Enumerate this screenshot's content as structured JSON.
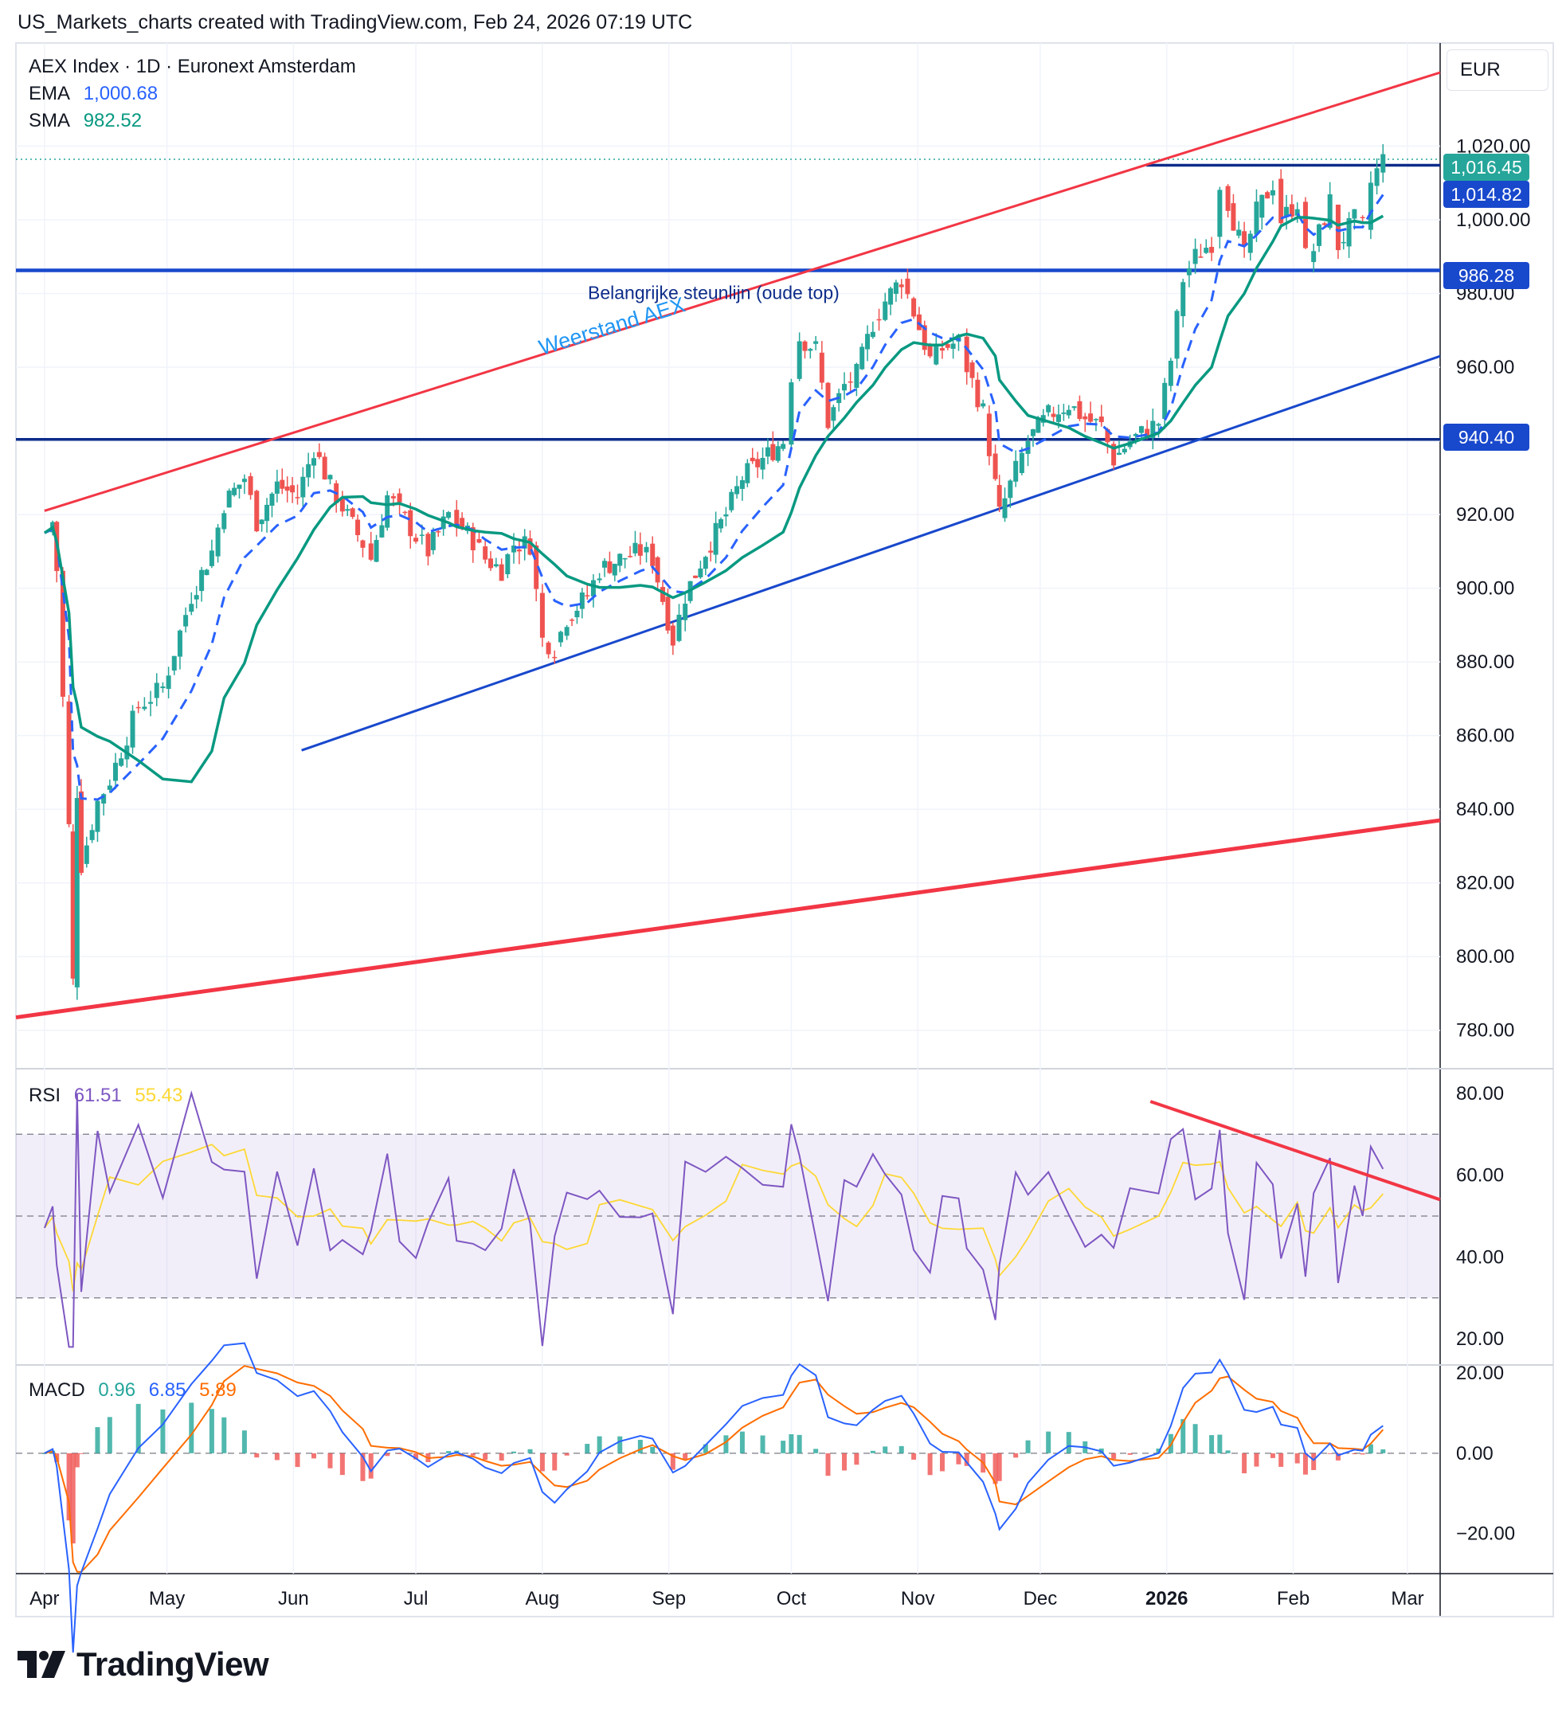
{
  "header": {
    "text": "US_Markets_charts created with TradingView.com, Feb 24, 2026 07:19 UTC"
  },
  "legend": {
    "symbol": "AEX Index · 1D · Euronext Amsterdam",
    "ema_label": "EMA",
    "ema_value": "1,000.68",
    "sma_label": "SMA",
    "sma_value": "982.52",
    "rsi_label": "RSI",
    "rsi_value": "61.51",
    "rsi_ma_value": "55.43",
    "macd_label": "MACD",
    "macd_hist": "0.96",
    "macd_value": "6.85",
    "macd_signal": "5.89"
  },
  "currency": "EUR",
  "price_tags": [
    {
      "value": "1,016.45",
      "color": "#26a69a"
    },
    {
      "value": "1,014.82",
      "color": "#1848cc"
    },
    {
      "value": "986.28",
      "color": "#1848cc"
    },
    {
      "value": "940.40",
      "color": "#1848cc"
    }
  ],
  "annotations": {
    "support_text": "Belangrijke steunlijn (oude top)",
    "resistance_text": "Weerstand AEX"
  },
  "logo": {
    "text": "TradingView"
  },
  "colors": {
    "up": "#26a69a",
    "down": "#ef5350",
    "ema": "#2962ff",
    "sma": "#089981",
    "channel_red": "#f23645",
    "channel_blue": "#1848cc",
    "rsi": "#7e57c2",
    "rsi_ma": "#fdd835",
    "macd_line": "#2962ff",
    "macd_signal": "#ff6d00"
  },
  "chart_data": {
    "type": "candlestick",
    "x_ticks": [
      "Apr",
      "May",
      "Jun",
      "Jul",
      "Aug",
      "Sep",
      "Oct",
      "Nov",
      "Dec",
      "2026",
      "Feb",
      "Mar"
    ],
    "price_axis": {
      "ticks": [
        "780.00",
        "800.00",
        "820.00",
        "840.00",
        "860.00",
        "880.00",
        "900.00",
        "920.00",
        "940.00",
        "960.00",
        "980.00",
        "1,000.00",
        "1,020.00"
      ],
      "range": [
        770,
        1048
      ]
    },
    "price_close_trace": [
      [
        "2025-04-01",
        915
      ],
      [
        "2025-04-03",
        918
      ],
      [
        "2025-04-04",
        905
      ],
      [
        "2025-04-07",
        835
      ],
      [
        "2025-04-08",
        793
      ],
      [
        "2025-04-09",
        845
      ],
      [
        "2025-04-10",
        825
      ],
      [
        "2025-04-14",
        842
      ],
      [
        "2025-04-17",
        848
      ],
      [
        "2025-04-24",
        868
      ],
      [
        "2025-04-30",
        873
      ],
      [
        "2025-05-07",
        898
      ],
      [
        "2025-05-12",
        910
      ],
      [
        "2025-05-15",
        923
      ],
      [
        "2025-05-20",
        930
      ],
      [
        "2025-05-23",
        918
      ],
      [
        "2025-05-28",
        928
      ],
      [
        "2025-06-02",
        925
      ],
      [
        "2025-06-06",
        938
      ],
      [
        "2025-06-10",
        928
      ],
      [
        "2025-06-13",
        922
      ],
      [
        "2025-06-18",
        912
      ],
      [
        "2025-06-20",
        908
      ],
      [
        "2025-06-24",
        925
      ],
      [
        "2025-06-27",
        921
      ],
      [
        "2025-07-01",
        914
      ],
      [
        "2025-07-04",
        910
      ],
      [
        "2025-07-09",
        920
      ],
      [
        "2025-07-11",
        918
      ],
      [
        "2025-07-15",
        913
      ],
      [
        "2025-07-18",
        908
      ],
      [
        "2025-07-22",
        905
      ],
      [
        "2025-07-25",
        912
      ],
      [
        "2025-07-29",
        912
      ],
      [
        "2025-08-01",
        886
      ],
      [
        "2025-08-04",
        884
      ],
      [
        "2025-08-07",
        892
      ],
      [
        "2025-08-12",
        898
      ],
      [
        "2025-08-15",
        905
      ],
      [
        "2025-08-20",
        908
      ],
      [
        "2025-08-25",
        910
      ],
      [
        "2025-08-28",
        908
      ],
      [
        "2025-09-02",
        886
      ],
      [
        "2025-09-05",
        898
      ],
      [
        "2025-09-10",
        910
      ],
      [
        "2025-09-15",
        920
      ],
      [
        "2025-09-19",
        930
      ],
      [
        "2025-09-24",
        935
      ],
      [
        "2025-09-29",
        940
      ],
      [
        "2025-10-01",
        958
      ],
      [
        "2025-10-03",
        968
      ],
      [
        "2025-10-07",
        965
      ],
      [
        "2025-10-10",
        945
      ],
      [
        "2025-10-14",
        955
      ],
      [
        "2025-10-17",
        958
      ],
      [
        "2025-10-21",
        972
      ],
      [
        "2025-10-24",
        978
      ],
      [
        "2025-10-28",
        984
      ],
      [
        "2025-10-31",
        975
      ],
      [
        "2025-11-04",
        962
      ],
      [
        "2025-11-07",
        965
      ],
      [
        "2025-11-11",
        967
      ],
      [
        "2025-11-13",
        960
      ],
      [
        "2025-11-17",
        948
      ],
      [
        "2025-11-20",
        928
      ],
      [
        "2025-11-21",
        920
      ],
      [
        "2025-11-25",
        932
      ],
      [
        "2025-11-28",
        940
      ],
      [
        "2025-12-03",
        947
      ],
      [
        "2025-12-08",
        950
      ],
      [
        "2025-12-12",
        946
      ],
      [
        "2025-12-16",
        944
      ],
      [
        "2025-12-19",
        935
      ],
      [
        "2025-12-23",
        940
      ],
      [
        "2025-12-30",
        945
      ],
      [
        "2026-01-02",
        962
      ],
      [
        "2026-01-05",
        984
      ],
      [
        "2026-01-08",
        990
      ],
      [
        "2026-01-12",
        994
      ],
      [
        "2026-01-14",
        1010
      ],
      [
        "2026-01-16",
        1005
      ],
      [
        "2026-01-20",
        990
      ],
      [
        "2026-01-23",
        1002
      ],
      [
        "2026-01-27",
        1010
      ],
      [
        "2026-01-29",
        1000
      ],
      [
        "2026-02-02",
        1005
      ],
      [
        "2026-02-04",
        990
      ],
      [
        "2026-02-06",
        992
      ],
      [
        "2026-02-10",
        1005
      ],
      [
        "2026-02-12",
        993
      ],
      [
        "2026-02-16",
        1000
      ],
      [
        "2026-02-18",
        998
      ],
      [
        "2026-02-20",
        1010
      ],
      [
        "2026-02-23",
        1016.45
      ]
    ],
    "ema_last": 1000.68,
    "sma_last": 982.52,
    "levels": [
      {
        "label": "1,014.82",
        "value": 1014.82
      },
      {
        "label": "986.28",
        "value": 986.28
      },
      {
        "label": "940.40",
        "value": 940.4
      }
    ],
    "rsi": {
      "ticks": [
        "20.00",
        "40.00",
        "60.00",
        "80.00"
      ],
      "range": [
        14,
        86
      ],
      "bands": [
        30,
        50,
        70
      ],
      "last": 61.51,
      "ma_last": 55.43
    },
    "macd": {
      "ticks": [
        "−20.00",
        "0.00",
        "20.00"
      ],
      "range": [
        -30,
        22
      ],
      "hist_last": 0.96,
      "macd_last": 6.85,
      "signal_last": 5.89
    }
  }
}
